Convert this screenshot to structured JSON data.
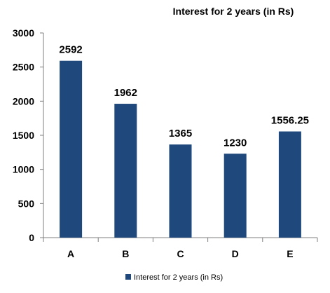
{
  "chart_data": {
    "type": "bar",
    "title": "Interest for 2 years (in Rs)",
    "categories": [
      "A",
      "B",
      "C",
      "D",
      "E"
    ],
    "series": [
      {
        "name": "Interest for 2 years (in Rs)",
        "values": [
          2592,
          1962,
          1365,
          1230,
          1556.25
        ],
        "labels": [
          "2592",
          "1962",
          "1365",
          "1230",
          "1556.25"
        ]
      }
    ],
    "ylim": [
      0,
      3000
    ],
    "yticks": [
      "0",
      "500",
      "1000",
      "1500",
      "2000",
      "2500",
      "3000"
    ],
    "xlabel": "",
    "ylabel": "",
    "grid": false,
    "legend_position": "bottom",
    "colors": {
      "bar": "#1F497D",
      "axis": "#7F7F7F"
    }
  }
}
